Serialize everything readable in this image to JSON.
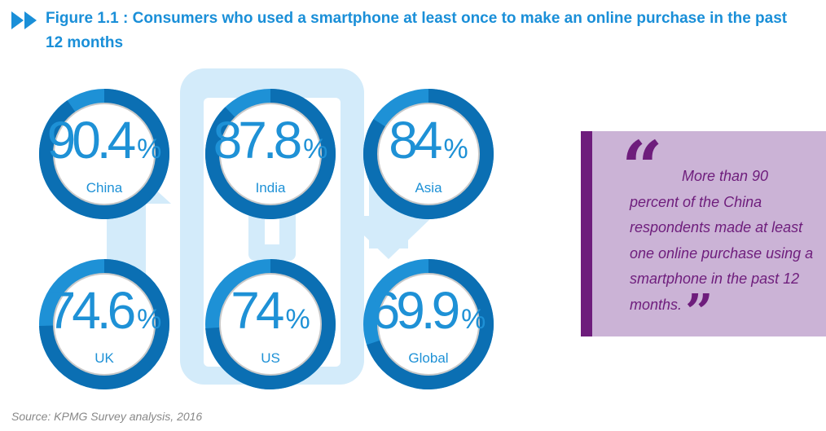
{
  "header": {
    "title": "Figure 1.1 : Consumers who used a smartphone at least once to make an online purchase in the past 12 months"
  },
  "chart_data": {
    "type": "donut-stats",
    "title": "Figure 1.1 : Consumers who used a smartphone at least once to make an online purchase in the past 12 months",
    "unit": "%",
    "categories": [
      "China",
      "India",
      "Asia",
      "UK",
      "US",
      "Global"
    ],
    "values": [
      90.4,
      87.8,
      84,
      74.6,
      74,
      69.9
    ],
    "items": [
      {
        "label": "China",
        "value": "90.4",
        "pct": 90.4
      },
      {
        "label": "India",
        "value": "87.8",
        "pct": 87.8
      },
      {
        "label": "Asia",
        "value": "84",
        "pct": 84
      },
      {
        "label": "UK",
        "value": "74.6",
        "pct": 74.6
      },
      {
        "label": "US",
        "value": "74",
        "pct": 74
      },
      {
        "label": "Global",
        "value": "69.9",
        "pct": 69.9
      }
    ],
    "percent_sign": "%"
  },
  "quote": {
    "first_line": "More than 90",
    "rest": "percent of the China respondents made at least one online purchase using a smartphone in the past 12 months."
  },
  "source": "Source: KPMG Survey analysis, 2016",
  "colors": {
    "accent": "#1a8fd8",
    "ring_track": "#1e91d6",
    "ring_progress": "#0b6fb3",
    "quote_purple": "#6e1d7c",
    "quote_bg": "#cbb3d6",
    "art_light_blue": "#d3ebfa"
  }
}
